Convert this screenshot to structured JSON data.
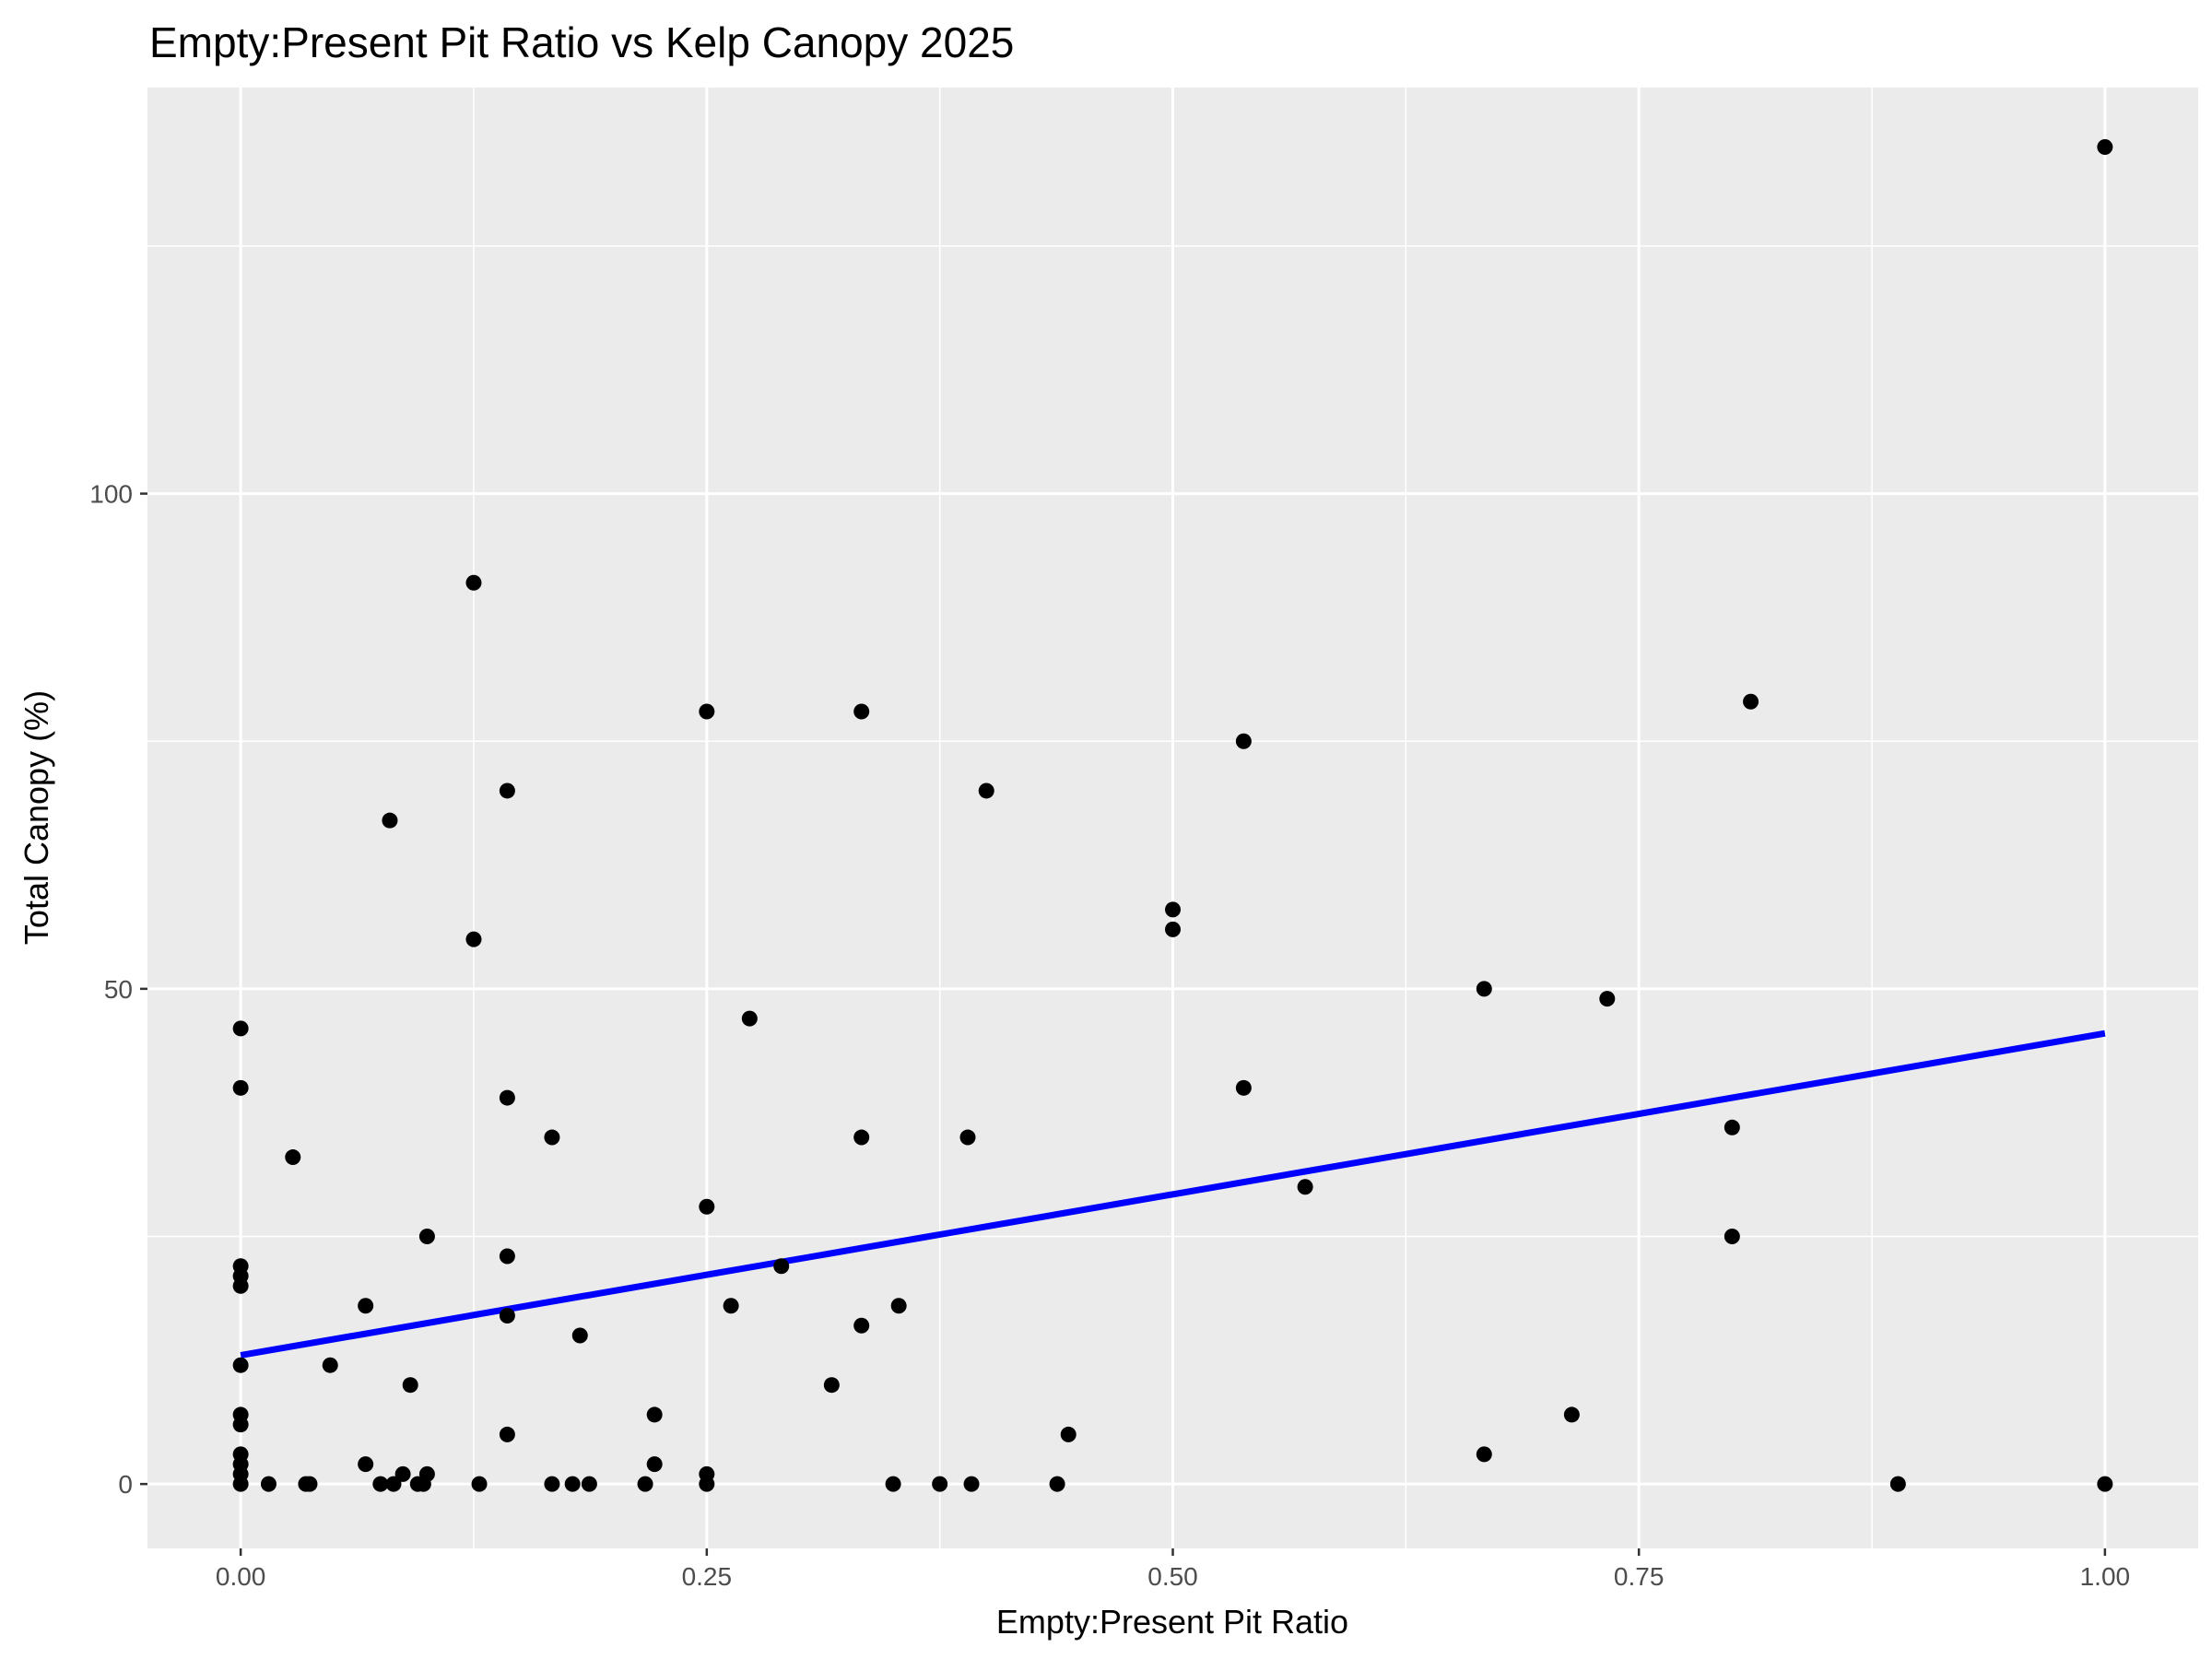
{
  "chart_data": {
    "type": "scatter",
    "title": "Empty:Present Pit Ratio vs Kelp Canopy 2025",
    "xlabel": "Empty:Present Pit Ratio",
    "ylabel": "Total Canopy (%)",
    "xlim": [
      -0.05,
      1.05
    ],
    "ylim": [
      -6.5,
      141
    ],
    "xticks": [
      0.0,
      0.25,
      0.5,
      0.75,
      1.0
    ],
    "xtick_labels": [
      "0.00",
      "0.25",
      "0.50",
      "0.75",
      "1.00"
    ],
    "yticks": [
      0,
      50,
      100
    ],
    "ytick_labels": [
      "0",
      "50",
      "100"
    ],
    "grid": true,
    "background": "#ebebeb",
    "point_color": "#000000",
    "trend_color": "#0000ff",
    "trend_line": {
      "x": [
        0.0,
        1.0
      ],
      "y": [
        13.0,
        45.5
      ]
    },
    "points": [
      [
        0.0,
        46
      ],
      [
        0.0,
        40
      ],
      [
        0.0,
        22
      ],
      [
        0.0,
        21
      ],
      [
        0.0,
        20
      ],
      [
        0.0,
        12
      ],
      [
        0.0,
        7
      ],
      [
        0.0,
        6
      ],
      [
        0.0,
        3
      ],
      [
        0.0,
        2
      ],
      [
        0.0,
        1
      ],
      [
        0.0,
        0
      ],
      [
        0.015,
        0
      ],
      [
        0.028,
        33
      ],
      [
        0.035,
        0
      ],
      [
        0.037,
        0
      ],
      [
        0.048,
        12
      ],
      [
        0.067,
        18
      ],
      [
        0.067,
        2
      ],
      [
        0.075,
        0
      ],
      [
        0.08,
        67
      ],
      [
        0.082,
        0
      ],
      [
        0.087,
        1
      ],
      [
        0.091,
        10
      ],
      [
        0.095,
        0
      ],
      [
        0.098,
        0
      ],
      [
        0.1,
        25
      ],
      [
        0.1,
        1
      ],
      [
        0.125,
        91
      ],
      [
        0.125,
        55
      ],
      [
        0.128,
        0
      ],
      [
        0.143,
        70
      ],
      [
        0.143,
        39
      ],
      [
        0.143,
        23
      ],
      [
        0.143,
        17
      ],
      [
        0.143,
        5
      ],
      [
        0.167,
        35
      ],
      [
        0.167,
        0
      ],
      [
        0.178,
        0
      ],
      [
        0.182,
        15
      ],
      [
        0.187,
        0
      ],
      [
        0.217,
        0
      ],
      [
        0.222,
        7
      ],
      [
        0.222,
        2
      ],
      [
        0.25,
        78
      ],
      [
        0.25,
        28
      ],
      [
        0.25,
        1
      ],
      [
        0.25,
        0
      ],
      [
        0.263,
        18
      ],
      [
        0.273,
        47
      ],
      [
        0.29,
        22
      ],
      [
        0.317,
        10
      ],
      [
        0.333,
        78
      ],
      [
        0.333,
        35
      ],
      [
        0.333,
        16
      ],
      [
        0.35,
        0
      ],
      [
        0.353,
        18
      ],
      [
        0.375,
        0
      ],
      [
        0.39,
        35
      ],
      [
        0.392,
        0
      ],
      [
        0.4,
        70
      ],
      [
        0.438,
        0
      ],
      [
        0.444,
        5
      ],
      [
        0.5,
        58
      ],
      [
        0.5,
        56
      ],
      [
        0.538,
        75
      ],
      [
        0.538,
        40
      ],
      [
        0.571,
        30
      ],
      [
        0.667,
        50
      ],
      [
        0.667,
        3
      ],
      [
        0.714,
        7
      ],
      [
        0.733,
        49
      ],
      [
        0.8,
        36
      ],
      [
        0.8,
        25
      ],
      [
        0.81,
        79
      ],
      [
        0.889,
        0
      ],
      [
        1.0,
        135
      ],
      [
        1.0,
        0
      ]
    ]
  }
}
